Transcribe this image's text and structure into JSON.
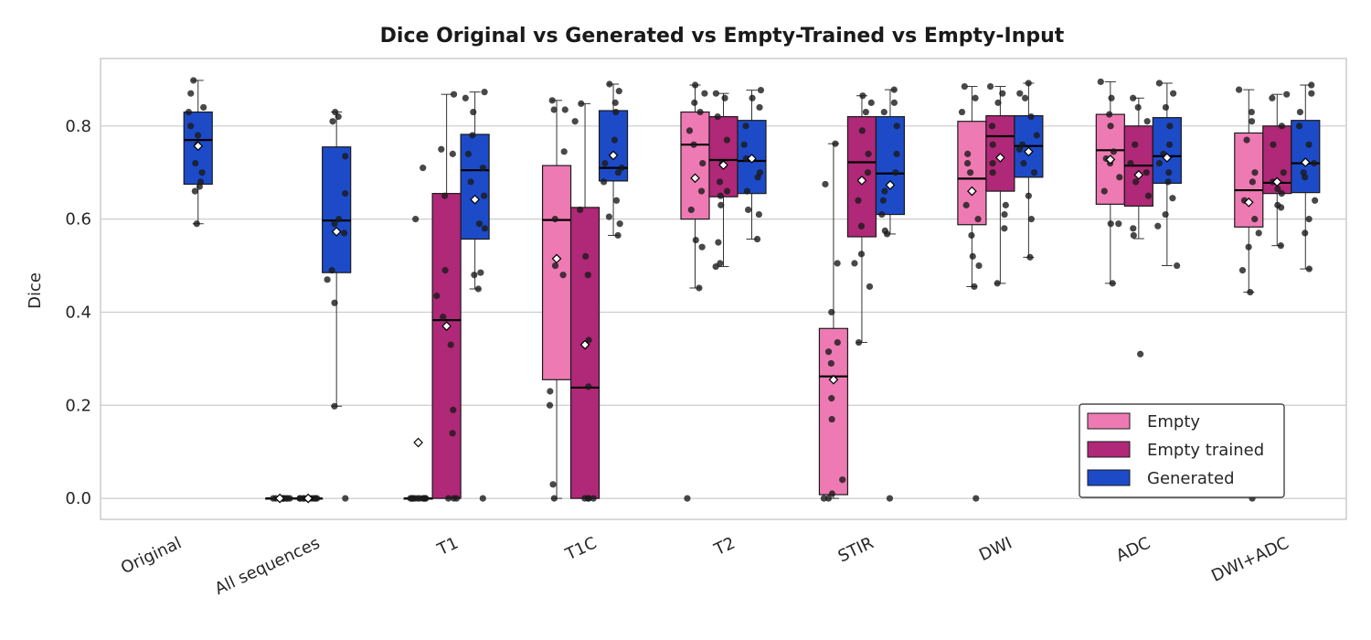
{
  "chart_data": {
    "type": "box",
    "title": "Dice Original vs Generated vs Empty-Trained vs Empty-Input",
    "xlabel": "",
    "ylabel": "Dice",
    "ylim": [
      -0.045,
      0.945
    ],
    "yticks": [
      0.0,
      0.2,
      0.4,
      0.6,
      0.8
    ],
    "ytick_labels": [
      "0.0",
      "0.2",
      "0.4",
      "0.6",
      "0.8"
    ],
    "grid": "horizontal",
    "legend_position": "lower-right",
    "categories": [
      "Original",
      "All sequences",
      "T1",
      "T1C",
      "T2",
      "STIR",
      "DWI",
      "ADC",
      "DWI+ADC"
    ],
    "series": [
      {
        "name": "Empty",
        "color": "#ee7ab3",
        "boxes": [
          null,
          {
            "q1": 0.0,
            "median": 0.0,
            "q3": 0.0,
            "whisker_low": 0.0,
            "whisker_high": 0.0,
            "mean": 0.0,
            "points": [
              0,
              0,
              0,
              0,
              0,
              0,
              0,
              0,
              0,
              0
            ]
          },
          {
            "q1": 0.0,
            "median": 0.0,
            "q3": 0.0,
            "whisker_low": 0.0,
            "whisker_high": 0.0,
            "mean": 0.12,
            "points": [
              0,
              0,
              0,
              0,
              0,
              0,
              0,
              0,
              0,
              0,
              0,
              0,
              0.71,
              0.6
            ]
          },
          {
            "q1": 0.255,
            "median": 0.598,
            "q3": 0.715,
            "whisker_low": 0.0,
            "whisker_high": 0.855,
            "mean": 0.515,
            "points": [
              0.855,
              0.835,
              0.835,
              0.745,
              0.6,
              0.5,
              0.48,
              0.23,
              0.2,
              0.03,
              0.0
            ]
          },
          {
            "q1": 0.6,
            "median": 0.76,
            "q3": 0.83,
            "whisker_low": 0.452,
            "whisker_high": 0.888,
            "mean": 0.688,
            "points": [
              0.888,
              0.87,
              0.85,
              0.83,
              0.79,
              0.76,
              0.72,
              0.66,
              0.62,
              0.555,
              0.54,
              0.452,
              0.0
            ]
          },
          {
            "q1": 0.008,
            "median": 0.262,
            "q3": 0.365,
            "whisker_low": 0.0,
            "whisker_high": 0.762,
            "mean": 0.255,
            "points": [
              0.762,
              0.675,
              0.505,
              0.4,
              0.335,
              0.315,
              0.29,
              0.215,
              0.17,
              0.04,
              0.01,
              0.0,
              0.0
            ]
          },
          {
            "q1": 0.588,
            "median": 0.687,
            "q3": 0.81,
            "whisker_low": 0.455,
            "whisker_high": 0.885,
            "mean": 0.66,
            "points": [
              0.885,
              0.86,
              0.83,
              0.74,
              0.72,
              0.7,
              0.63,
              0.6,
              0.565,
              0.52,
              0.5,
              0.455,
              0.0
            ]
          },
          {
            "q1": 0.632,
            "median": 0.748,
            "q3": 0.825,
            "whisker_low": 0.462,
            "whisker_high": 0.895,
            "mean": 0.728,
            "points": [
              0.895,
              0.86,
              0.825,
              0.8,
              0.745,
              0.73,
              0.72,
              0.69,
              0.66,
              0.59,
              0.59,
              0.462
            ]
          },
          {
            "q1": 0.583,
            "median": 0.662,
            "q3": 0.785,
            "whisker_low": 0.443,
            "whisker_high": 0.878,
            "mean": 0.636,
            "points": [
              0.878,
              0.83,
              0.81,
              0.77,
              0.7,
              0.68,
              0.64,
              0.6,
              0.57,
              0.54,
              0.49,
              0.443,
              0.0
            ]
          }
        ]
      },
      {
        "name": "Empty trained",
        "color": "#b02878",
        "boxes": [
          null,
          {
            "q1": 0.0,
            "median": 0.0,
            "q3": 0.0,
            "whisker_low": 0.0,
            "whisker_high": 0.0,
            "mean": 0.0,
            "points": [
              0,
              0,
              0,
              0,
              0,
              0,
              0,
              0,
              0,
              0
            ]
          },
          {
            "q1": 0.0,
            "median": 0.383,
            "q3": 0.655,
            "whisker_low": 0.0,
            "whisker_high": 0.868,
            "mean": 0.37,
            "points": [
              0.868,
              0.75,
              0.74,
              0.65,
              0.49,
              0.435,
              0.39,
              0.33,
              0.19,
              0.14,
              0.0,
              0.0,
              0.0
            ]
          },
          {
            "q1": 0.0,
            "median": 0.238,
            "q3": 0.625,
            "whisker_low": 0.0,
            "whisker_high": 0.848,
            "mean": 0.33,
            "points": [
              0.848,
              0.81,
              0.62,
              0.52,
              0.48,
              0.34,
              0.24,
              0.0,
              0.0,
              0.0,
              0.0
            ]
          },
          {
            "q1": 0.648,
            "median": 0.727,
            "q3": 0.82,
            "whisker_low": 0.498,
            "whisker_high": 0.87,
            "mean": 0.716,
            "points": [
              0.87,
              0.86,
              0.82,
              0.77,
              0.72,
              0.68,
              0.66,
              0.65,
              0.63,
              0.55,
              0.505,
              0.498
            ]
          },
          {
            "q1": 0.562,
            "median": 0.722,
            "q3": 0.82,
            "whisker_low": 0.335,
            "whisker_high": 0.865,
            "mean": 0.683,
            "points": [
              0.865,
              0.85,
              0.83,
              0.79,
              0.74,
              0.7,
              0.64,
              0.585,
              0.525,
              0.505,
              0.455,
              0.335
            ]
          },
          {
            "q1": 0.66,
            "median": 0.778,
            "q3": 0.822,
            "whisker_low": 0.462,
            "whisker_high": 0.885,
            "mean": 0.732,
            "points": [
              0.885,
              0.87,
              0.85,
              0.8,
              0.76,
              0.72,
              0.7,
              0.63,
              0.61,
              0.58,
              0.462
            ]
          },
          {
            "q1": 0.628,
            "median": 0.715,
            "q3": 0.8,
            "whisker_low": 0.558,
            "whisker_high": 0.86,
            "mean": 0.695,
            "points": [
              0.86,
              0.84,
              0.81,
              0.76,
              0.72,
              0.7,
              0.68,
              0.65,
              0.58,
              0.565,
              0.31
            ]
          },
          {
            "q1": 0.655,
            "median": 0.678,
            "q3": 0.8,
            "whisker_low": 0.543,
            "whisker_high": 0.868,
            "mean": 0.68,
            "points": [
              0.868,
              0.86,
              0.8,
              0.76,
              0.7,
              0.68,
              0.665,
              0.655,
              0.63,
              0.625,
              0.543
            ]
          }
        ]
      },
      {
        "name": "Generated",
        "color": "#1d4bc8",
        "boxes": [
          {
            "q1": 0.675,
            "median": 0.77,
            "q3": 0.83,
            "whisker_low": 0.59,
            "whisker_high": 0.898,
            "mean": 0.757,
            "points": [
              0.898,
              0.87,
              0.84,
              0.83,
              0.8,
              0.78,
              0.76,
              0.72,
              0.7,
              0.68,
              0.67,
              0.66,
              0.59
            ]
          },
          {
            "q1": 0.485,
            "median": 0.597,
            "q3": 0.755,
            "whisker_low": 0.198,
            "whisker_high": 0.83,
            "mean": 0.573,
            "points": [
              0.83,
              0.82,
              0.81,
              0.735,
              0.655,
              0.6,
              0.59,
              0.57,
              0.49,
              0.47,
              0.42,
              0.198,
              0.0
            ]
          },
          {
            "q1": 0.557,
            "median": 0.705,
            "q3": 0.782,
            "whisker_low": 0.45,
            "whisker_high": 0.873,
            "mean": 0.642,
            "points": [
              0.873,
              0.86,
              0.83,
              0.78,
              0.74,
              0.71,
              0.68,
              0.65,
              0.59,
              0.58,
              0.485,
              0.48,
              0.45,
              0.0
            ]
          },
          {
            "q1": 0.682,
            "median": 0.71,
            "q3": 0.833,
            "whisker_low": 0.565,
            "whisker_high": 0.89,
            "mean": 0.737,
            "points": [
              0.89,
              0.875,
              0.85,
              0.83,
              0.77,
              0.72,
              0.71,
              0.7,
              0.68,
              0.64,
              0.605,
              0.59,
              0.565
            ]
          },
          {
            "q1": 0.655,
            "median": 0.725,
            "q3": 0.812,
            "whisker_low": 0.557,
            "whisker_high": 0.877,
            "mean": 0.73,
            "points": [
              0.877,
              0.86,
              0.84,
              0.8,
              0.76,
              0.73,
              0.7,
              0.69,
              0.66,
              0.62,
              0.61,
              0.557
            ]
          },
          {
            "q1": 0.61,
            "median": 0.698,
            "q3": 0.82,
            "whisker_low": 0.568,
            "whisker_high": 0.878,
            "mean": 0.673,
            "points": [
              0.878,
              0.85,
              0.83,
              0.8,
              0.74,
              0.7,
              0.66,
              0.64,
              0.61,
              0.575,
              0.568,
              0.0
            ]
          },
          {
            "q1": 0.69,
            "median": 0.757,
            "q3": 0.822,
            "whisker_low": 0.518,
            "whisker_high": 0.892,
            "mean": 0.745,
            "points": [
              0.892,
              0.87,
              0.86,
              0.82,
              0.78,
              0.76,
              0.75,
              0.72,
              0.7,
              0.65,
              0.6,
              0.518
            ]
          },
          {
            "q1": 0.677,
            "median": 0.735,
            "q3": 0.818,
            "whisker_low": 0.5,
            "whisker_high": 0.892,
            "mean": 0.732,
            "points": [
              0.892,
              0.87,
              0.84,
              0.8,
              0.76,
              0.74,
              0.72,
              0.7,
              0.68,
              0.645,
              0.61,
              0.585,
              0.5
            ]
          },
          {
            "q1": 0.657,
            "median": 0.72,
            "q3": 0.812,
            "whisker_low": 0.493,
            "whisker_high": 0.888,
            "mean": 0.722,
            "points": [
              0.888,
              0.87,
              0.83,
              0.8,
              0.76,
              0.72,
              0.7,
              0.69,
              0.64,
              0.6,
              0.57,
              0.493
            ]
          }
        ]
      }
    ]
  }
}
